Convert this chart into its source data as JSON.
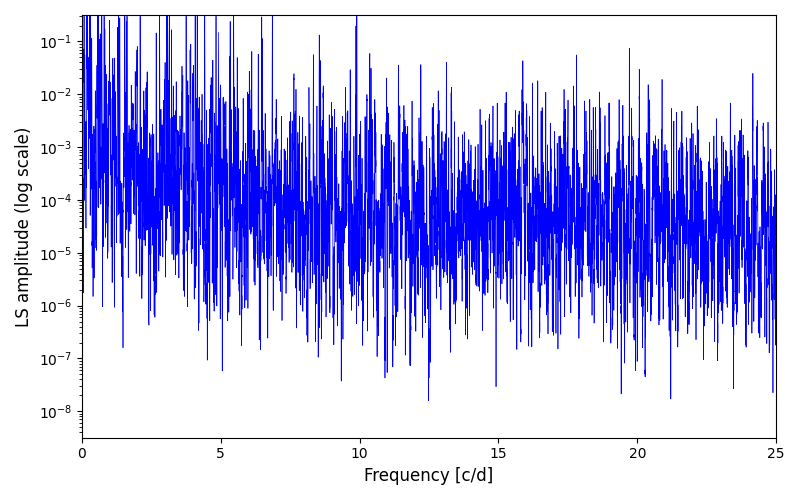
{
  "title": "",
  "xlabel": "Frequency [c/d]",
  "ylabel": "LS amplitude (log scale)",
  "line_color": "#0000ff",
  "line_width": 0.5,
  "xlim": [
    0,
    25
  ],
  "ylim_log_min": -8.5,
  "ylim_log_max": -0.5,
  "yscale": "log",
  "figsize": [
    8.0,
    5.0
  ],
  "dpi": 100,
  "background_color": "#ffffff",
  "n_points": 15000,
  "freq_max": 25.0,
  "seed": 77
}
